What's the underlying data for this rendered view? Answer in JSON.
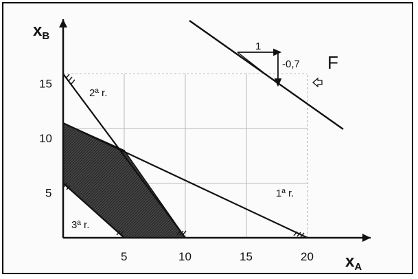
{
  "axes": {
    "x": {
      "name": "x",
      "sub": "A",
      "ticks": [
        5,
        10,
        15,
        20
      ]
    },
    "y": {
      "name": "x",
      "sub": "B",
      "ticks": [
        5,
        10,
        15
      ]
    }
  },
  "constraints": [
    {
      "label": "2ª r.",
      "from": [
        0,
        15
      ],
      "to": [
        10,
        0
      ]
    },
    {
      "label": "1ª r.",
      "from": [
        0,
        10.5
      ],
      "to": [
        20,
        0
      ]
    },
    {
      "label": "3ª r.",
      "from": [
        0,
        5
      ],
      "to": [
        5,
        0
      ]
    }
  ],
  "feasible_region": [
    [
      0,
      10.5
    ],
    [
      5,
      8
    ],
    [
      10,
      0
    ],
    [
      5,
      0
    ],
    [
      0,
      5
    ]
  ],
  "objective": {
    "label": "F",
    "step_x": "1",
    "step_y": "-0,7"
  },
  "colors": {
    "line": "#111111",
    "region": "#3a3a3a",
    "grid": "#b8b8b8"
  }
}
